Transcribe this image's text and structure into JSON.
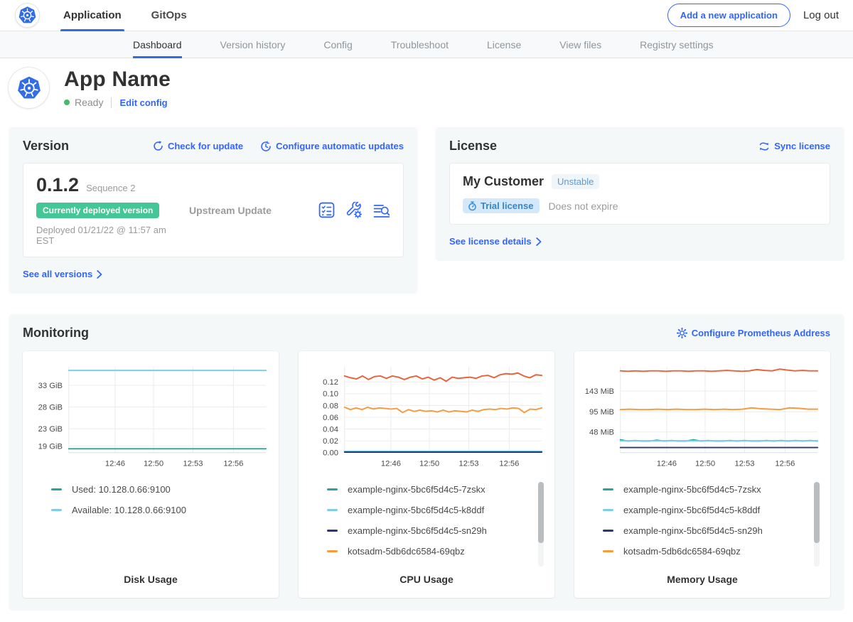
{
  "topnav": {
    "tabs": [
      {
        "label": "Application",
        "active": true
      },
      {
        "label": "GitOps",
        "active": false
      }
    ],
    "add_app_button": "Add a new application",
    "logout_label": "Log out"
  },
  "subnav": {
    "tabs": [
      {
        "label": "Dashboard",
        "active": true
      },
      {
        "label": "Version history",
        "active": false
      },
      {
        "label": "Config",
        "active": false
      },
      {
        "label": "Troubleshoot",
        "active": false
      },
      {
        "label": "License",
        "active": false
      },
      {
        "label": "View files",
        "active": false
      },
      {
        "label": "Registry settings",
        "active": false
      }
    ]
  },
  "app_header": {
    "title": "App Name",
    "status": "Ready",
    "edit_config": "Edit config"
  },
  "version": {
    "heading": "Version",
    "check_for_update": "Check for update",
    "configure_updates": "Configure automatic updates",
    "version_number": "0.1.2",
    "sequence": "Sequence 2",
    "deployed_badge": "Currently deployed version",
    "deployed_at": "Deployed 01/21/22 @ 11:57 am EST",
    "source": "Upstream Update",
    "see_all_versions": "See all versions"
  },
  "license": {
    "heading": "License",
    "sync_license": "Sync license",
    "customer": "My Customer",
    "channel_badge": "Unstable",
    "trial_badge": "Trial license",
    "expiry": "Does not expire",
    "see_details": "See license details"
  },
  "monitoring": {
    "heading": "Monitoring",
    "configure_link": "Configure Prometheus Address"
  },
  "colors": {
    "link_blue": "#3066ff",
    "k8s_blue": "#326de6",
    "ready_green": "#44bb66",
    "deployed_badge_green": "#44c796",
    "series_teal": "#2aa39d",
    "series_light_blue": "#7fcde8",
    "series_navy": "#2a3875",
    "series_orange": "#f79b3d",
    "series_red_orange": "#e8633a"
  },
  "chart_data": [
    {
      "type": "line",
      "title": "Disk Usage",
      "ylabel": "",
      "xlabel": "",
      "ylim": [
        17.5,
        37.3
      ],
      "grid": true,
      "legend_position": "below",
      "legend_scrollbar": false,
      "y_ticks": [
        {
          "value": 33,
          "label": "33 GiB"
        },
        {
          "value": 28,
          "label": "28 GiB"
        },
        {
          "value": 23,
          "label": "23 GiB"
        },
        {
          "value": 19,
          "label": "19 GiB"
        }
      ],
      "x_ticks": [
        {
          "pos": 0.235,
          "label": "12:46"
        },
        {
          "pos": 0.43,
          "label": "12:50"
        },
        {
          "pos": 0.63,
          "label": "12:53"
        },
        {
          "pos": 0.835,
          "label": "12:56"
        }
      ],
      "series": [
        {
          "name": "Used: 10.128.0.66:9100",
          "color": "#2aa39d",
          "in_legend": true,
          "values": [
            18.4,
            18.4,
            18.4,
            18.4,
            18.4,
            18.4,
            18.4,
            18.4
          ]
        },
        {
          "name": "Available: 10.128.0.66:9100",
          "color": "#7fcde8",
          "in_legend": true,
          "values": [
            36.4,
            36.4,
            36.4,
            36.4,
            36.4,
            36.4,
            36.4,
            36.4
          ]
        }
      ]
    },
    {
      "type": "line",
      "title": "CPU Usage",
      "ylabel": "",
      "xlabel": "",
      "ylim": [
        0,
        0.146
      ],
      "grid": true,
      "legend_position": "below",
      "legend_scrollbar": true,
      "y_ticks": [
        {
          "value": 0.12,
          "label": "0.12"
        },
        {
          "value": 0.1,
          "label": "0.10"
        },
        {
          "value": 0.08,
          "label": "0.08"
        },
        {
          "value": 0.06,
          "label": "0.06"
        },
        {
          "value": 0.04,
          "label": "0.04"
        },
        {
          "value": 0.02,
          "label": "0.02"
        },
        {
          "value": 0.0,
          "label": "0.00"
        }
      ],
      "x_ticks": [
        {
          "pos": 0.235,
          "label": "12:46"
        },
        {
          "pos": 0.43,
          "label": "12:50"
        },
        {
          "pos": 0.63,
          "label": "12:53"
        },
        {
          "pos": 0.835,
          "label": "12:56"
        }
      ],
      "series": [
        {
          "name": "example-nginx-5bc6f5d4c5-7zskx",
          "color": "#2aa39d",
          "in_legend": true,
          "values": [
            0.002,
            0.002,
            0.002,
            0.002,
            0.002,
            0.002,
            0.002,
            0.002
          ]
        },
        {
          "name": "example-nginx-5bc6f5d4c5-k8ddf",
          "color": "#7fcde8",
          "in_legend": true,
          "values": [
            0.0025,
            0.0025,
            0.0025,
            0.0025,
            0.0025,
            0.0025,
            0.0025,
            0.0025
          ]
        },
        {
          "name": "example-nginx-5bc6f5d4c5-sn29h",
          "color": "#2a3875",
          "in_legend": true,
          "values": [
            0.001,
            0.001,
            0.001,
            0.001,
            0.001,
            0.001,
            0.001,
            0.001
          ]
        },
        {
          "name": "kotsadm-5db6dc6584-69qbz",
          "color": "#f79b3d",
          "in_legend": true,
          "values": [
            0.077,
            0.073,
            0.076,
            0.073,
            0.077,
            0.074,
            0.076,
            0.075,
            0.074,
            0.075,
            0.068,
            0.073,
            0.07,
            0.072,
            0.07,
            0.071,
            0.069,
            0.072,
            0.069,
            0.071,
            0.07,
            0.069,
            0.072,
            0.07,
            0.073,
            0.074,
            0.073,
            0.075,
            0.074,
            0.076,
            0.075,
            0.068,
            0.074,
            0.073,
            0.076
          ]
        },
        {
          "name": "",
          "color": "#e8633a",
          "in_legend": false,
          "values": [
            0.13,
            0.127,
            0.125,
            0.13,
            0.124,
            0.129,
            0.13,
            0.126,
            0.13,
            0.128,
            0.124,
            0.128,
            0.13,
            0.125,
            0.128,
            0.123,
            0.127,
            0.121,
            0.128,
            0.126,
            0.127,
            0.128,
            0.126,
            0.13,
            0.131,
            0.127,
            0.132,
            0.134,
            0.133,
            0.135,
            0.13,
            0.127,
            0.132,
            0.131
          ]
        }
      ]
    },
    {
      "type": "line",
      "title": "Memory Usage",
      "ylabel": "",
      "xlabel": "",
      "ylim": [
        0,
        200
      ],
      "grid": true,
      "legend_position": "below",
      "legend_scrollbar": true,
      "y_ticks": [
        {
          "value": 143,
          "label": "143 MiB"
        },
        {
          "value": 95,
          "label": "95 MiB"
        },
        {
          "value": 48,
          "label": "48 MiB"
        }
      ],
      "x_ticks": [
        {
          "pos": 0.235,
          "label": "12:46"
        },
        {
          "pos": 0.43,
          "label": "12:50"
        },
        {
          "pos": 0.63,
          "label": "12:53"
        },
        {
          "pos": 0.835,
          "label": "12:56"
        }
      ],
      "series": [
        {
          "name": "example-nginx-5bc6f5d4c5-k8ddf-underlay",
          "color": "#7fcde8",
          "in_legend": false,
          "values": [
            27.5,
            27.5,
            27.5,
            27.5,
            27.5,
            27.5,
            27.5,
            27.5
          ]
        },
        {
          "name": "example-nginx-5bc6f5d4c5-7zskx",
          "color": "#2aa39d",
          "in_legend": true,
          "values": [
            30,
            27,
            28,
            27,
            27,
            29,
            27,
            28,
            27,
            27,
            30,
            27,
            28,
            27,
            27,
            28,
            27,
            28,
            27,
            27,
            28,
            27,
            28,
            27,
            28,
            27,
            28,
            27
          ]
        },
        {
          "name": "example-nginx-5bc6f5d4c5-k8ddf",
          "color": "#7fcde8",
          "in_legend": true,
          "values": [
            27.5,
            27.5
          ]
        },
        {
          "name": "example-nginx-5bc6f5d4c5-sn29h",
          "color": "#2a3875",
          "in_legend": true,
          "values": [
            12,
            12,
            12,
            12,
            12,
            12,
            12,
            12
          ]
        },
        {
          "name": "kotsadm-5db6dc6584-69qbz",
          "color": "#f79b3d",
          "in_legend": true,
          "values": [
            100,
            101,
            100,
            100,
            101,
            100,
            101,
            100,
            100,
            101,
            100,
            101,
            100,
            101,
            104,
            102,
            101,
            100,
            104,
            103,
            101,
            101
          ]
        },
        {
          "name": "",
          "color": "#e8633a",
          "in_legend": false,
          "values": [
            190,
            189,
            190,
            189,
            190,
            190,
            189,
            190,
            190,
            189,
            190,
            190,
            189,
            190,
            191,
            190,
            189,
            190,
            193,
            191,
            190,
            194,
            192,
            190,
            191,
            190,
            190
          ]
        }
      ]
    }
  ]
}
